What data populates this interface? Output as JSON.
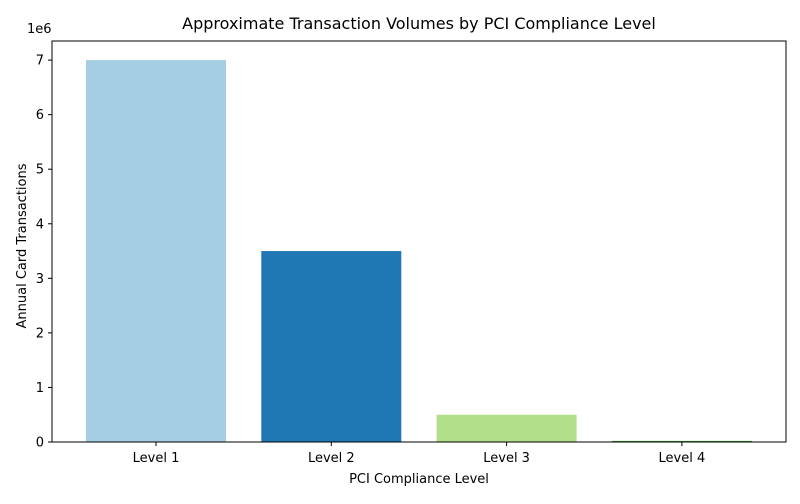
{
  "chart_data": {
    "type": "bar",
    "title": "Approximate Transaction Volumes by PCI Compliance Level",
    "xlabel": "PCI Compliance Level",
    "ylabel": "Annual Card Transactions",
    "scale_label": "1e6",
    "categories": [
      "Level 1",
      "Level 2",
      "Level 3",
      "Level 4"
    ],
    "values": [
      7000000,
      3500000,
      500000,
      20000
    ],
    "colors": [
      "#a6cee3",
      "#1f78b4",
      "#b2df8a",
      "#33a02c"
    ],
    "ylim": [
      0,
      7350000
    ],
    "yticks": [
      0,
      1000000,
      2000000,
      3000000,
      4000000,
      5000000,
      6000000,
      7000000
    ],
    "ytick_labels": [
      "0",
      "1",
      "2",
      "3",
      "4",
      "5",
      "6",
      "7"
    ],
    "grid": false,
    "legend": "none"
  }
}
